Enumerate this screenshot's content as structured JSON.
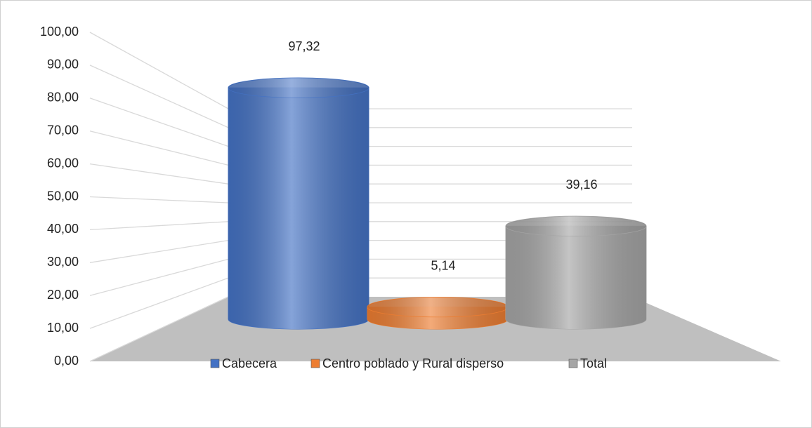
{
  "chart_data": {
    "type": "bar3d",
    "categories": [
      null
    ],
    "series": [
      {
        "name": "Cabecera",
        "color": "#4472c4",
        "values": [
          97.32
        ],
        "value_labels": [
          "97,32"
        ]
      },
      {
        "name": "Centro poblado y Rural disperso",
        "color": "#ed7d31",
        "values": [
          5.14
        ],
        "value_labels": [
          "5,14"
        ]
      },
      {
        "name": "Total",
        "color": "#a5a5a5",
        "values": [
          39.16
        ],
        "value_labels": [
          "39,16"
        ]
      }
    ],
    "ylim": [
      0,
      100
    ],
    "yticks": [
      {
        "value": 0,
        "label": "0,00"
      },
      {
        "value": 10,
        "label": "10,00"
      },
      {
        "value": 20,
        "label": "20,00"
      },
      {
        "value": 30,
        "label": "30,00"
      },
      {
        "value": 40,
        "label": "40,00"
      },
      {
        "value": 50,
        "label": "50,00"
      },
      {
        "value": 60,
        "label": "60,00"
      },
      {
        "value": 70,
        "label": "70,00"
      },
      {
        "value": 80,
        "label": "80,00"
      },
      {
        "value": 90,
        "label": "90,00"
      },
      {
        "value": 100,
        "label": "100,00"
      }
    ],
    "grid": true,
    "legend": "bottom"
  }
}
